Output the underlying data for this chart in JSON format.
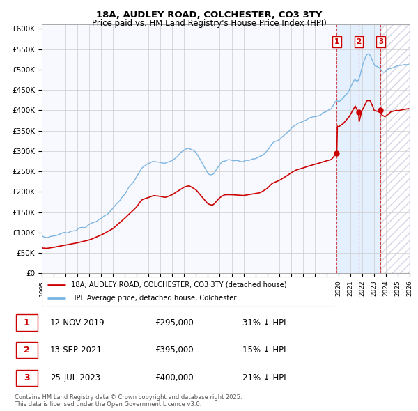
{
  "title1": "18A, AUDLEY ROAD, COLCHESTER, CO3 3TY",
  "title2": "Price paid vs. HM Land Registry's House Price Index (HPI)",
  "ytick_labels": [
    "£0",
    "£50K",
    "£100K",
    "£150K",
    "£200K",
    "£250K",
    "£300K",
    "£350K",
    "£400K",
    "£450K",
    "£500K",
    "£550K",
    "£600K"
  ],
  "yticks": [
    0,
    50000,
    100000,
    150000,
    200000,
    250000,
    300000,
    350000,
    400000,
    450000,
    500000,
    550000,
    600000
  ],
  "hpi_color": "#7ab4e0",
  "price_color": "#cc0000",
  "sale_prices": [
    295000,
    395000,
    400000
  ],
  "sale_labels": [
    "1",
    "2",
    "3"
  ],
  "sale_info": [
    {
      "label": "1",
      "date": "12-NOV-2019",
      "price": "£295,000",
      "pct": "31% ↓ HPI"
    },
    {
      "label": "2",
      "date": "13-SEP-2021",
      "price": "£395,000",
      "pct": "15% ↓ HPI"
    },
    {
      "label": "3",
      "date": "25-JUL-2023",
      "price": "£400,000",
      "pct": "21% ↓ HPI"
    }
  ],
  "legend_entries": [
    "18A, AUDLEY ROAD, COLCHESTER, CO3 3TY (detached house)",
    "HPI: Average price, detached house, Colchester"
  ],
  "footnote": "Contains HM Land Registry data © Crown copyright and database right 2025.\nThis data is licensed under the Open Government Licence v3.0.",
  "background_color": "#ffffff",
  "grid_color": "#cccccc"
}
